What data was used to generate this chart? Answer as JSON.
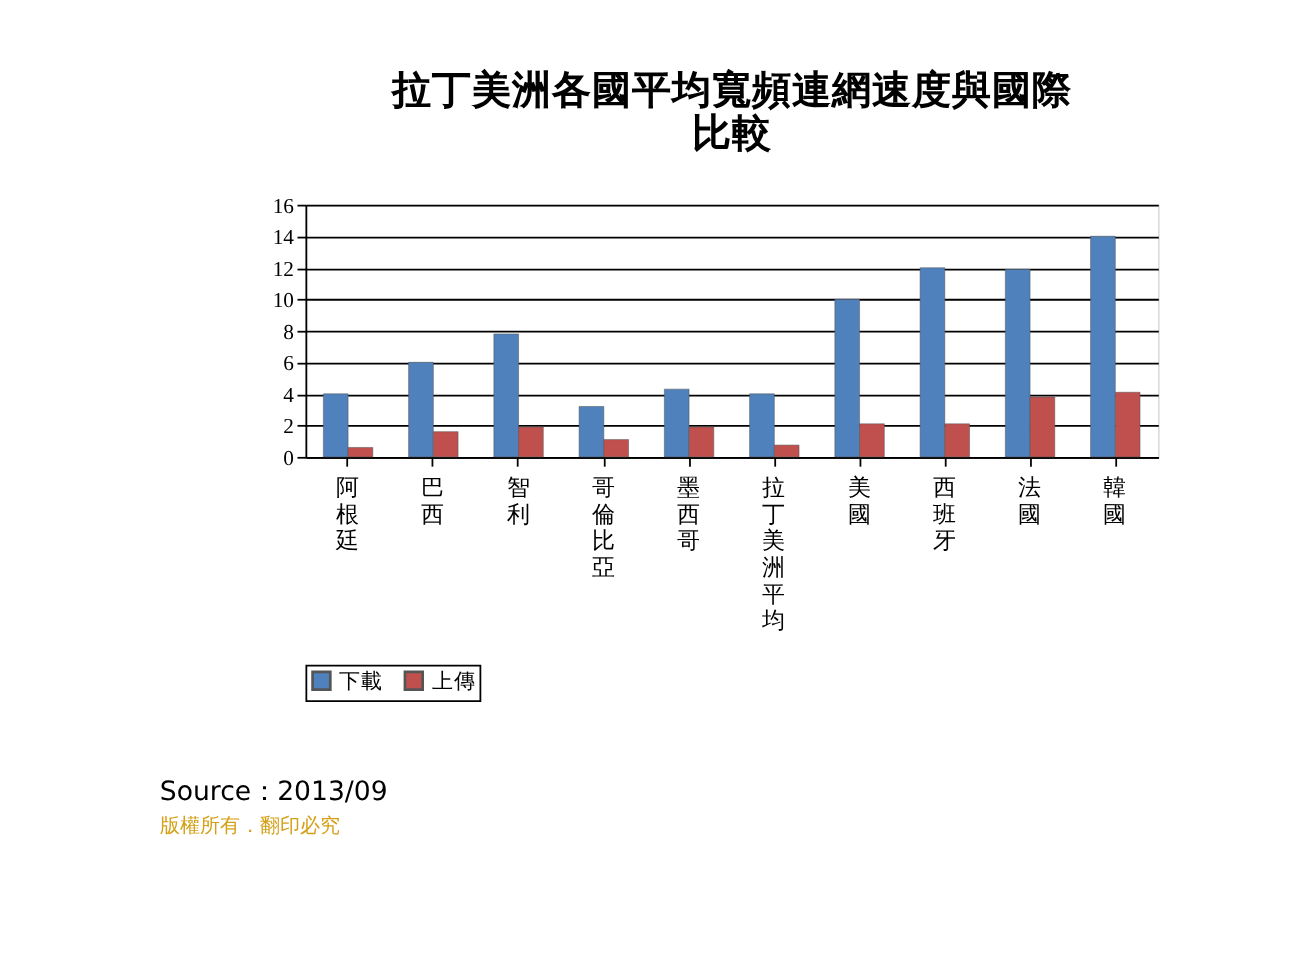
{
  "chart_data": {
    "type": "bar",
    "title": "拉丁美洲各國平均寬頻連網速度與國際比較",
    "categories": [
      "阿根廷",
      "巴西",
      "智利",
      "哥倫比亞",
      "墨西哥",
      "拉丁美洲平均",
      "美國",
      "西班牙",
      "法國",
      "韓國"
    ],
    "series": [
      {
        "name": "下載",
        "color": "#4f81bd",
        "values": [
          4.0,
          6.0,
          7.8,
          3.2,
          4.3,
          4.0,
          10.0,
          12.0,
          11.9,
          14.0
        ]
      },
      {
        "name": "上傳",
        "color": "#c0504d",
        "values": [
          0.6,
          1.6,
          1.9,
          1.1,
          1.9,
          0.75,
          2.1,
          2.1,
          3.8,
          4.1
        ]
      }
    ],
    "ylim": [
      0,
      16
    ],
    "yticks": [
      0,
      2,
      4,
      6,
      8,
      10,
      12,
      14,
      16
    ],
    "grid": "y",
    "legend": "bottom",
    "annotations": [
      "Source：2013/09",
      "版權所有．翻印必究"
    ]
  }
}
